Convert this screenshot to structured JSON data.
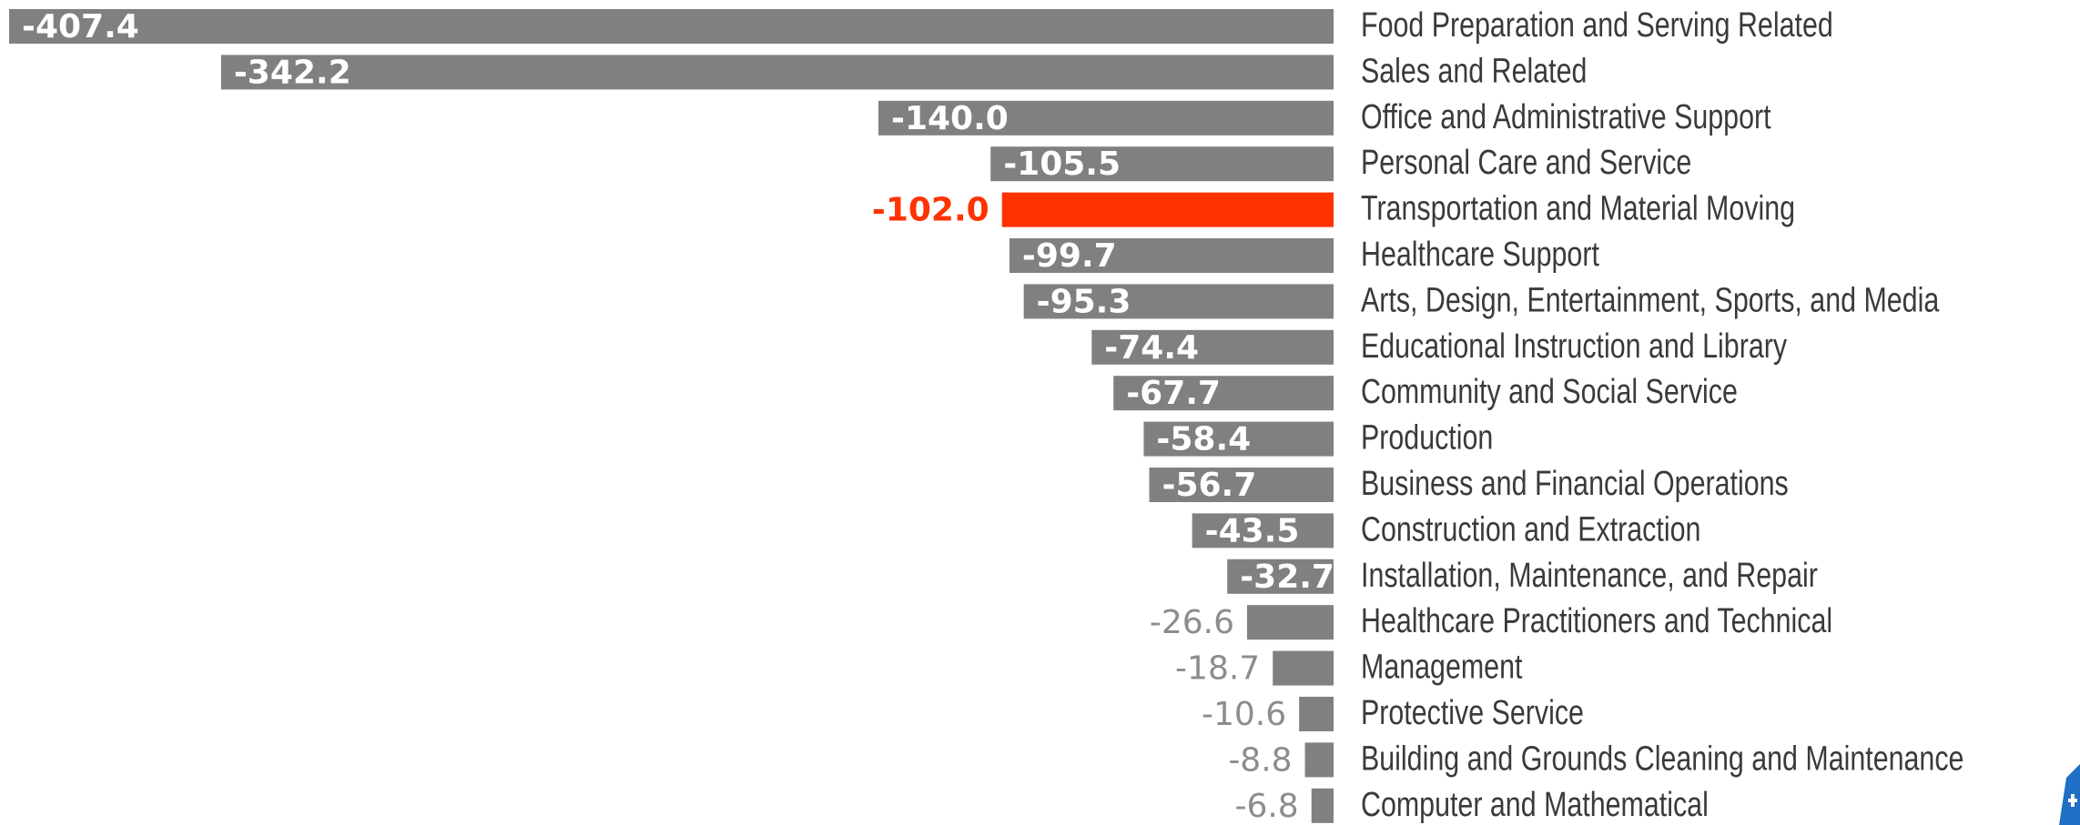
{
  "chart_data": {
    "type": "bar",
    "orientation": "horizontal",
    "categories": [
      "Food Preparation and Serving Related",
      "Sales and Related",
      "Office and Administrative Support",
      "Personal Care and Service",
      "Transportation and Material Moving",
      "Healthcare Support",
      "Arts, Design, Entertainment, Sports, and Media",
      "Educational Instruction and Library",
      "Community and Social Service",
      "Production",
      "Business and Financial Operations",
      "Construction and Extraction",
      "Installation, Maintenance, and Repair",
      "Healthcare Practitioners and Technical",
      "Management",
      "Protective Service",
      "Building and Grounds Cleaning and Maintenance",
      "Computer and Mathematical"
    ],
    "values": [
      -407.4,
      -342.2,
      -140.0,
      -105.5,
      -102.0,
      -99.7,
      -95.3,
      -74.4,
      -67.7,
      -58.4,
      -56.7,
      -43.5,
      -32.7,
      -26.6,
      -18.7,
      -10.6,
      -8.8,
      -6.8
    ],
    "value_labels": [
      "-407.4",
      "-342.2",
      "-140.0",
      "-105.5",
      "-102.0",
      "-99.7",
      "-95.3",
      "-74.4",
      "-67.7",
      "-58.4",
      "-56.7",
      "-43.5",
      "-32.7",
      "-26.6",
      "-18.7",
      "-10.6",
      "-8.8",
      "-6.8"
    ],
    "color": "#808080",
    "colors": [
      "#808080",
      "#808080",
      "#808080",
      "#808080",
      "#ff3300",
      "#808080",
      "#808080",
      "#808080",
      "#808080",
      "#808080",
      "#808080",
      "#808080",
      "#808080",
      "#808080",
      "#808080",
      "#808080",
      "#808080",
      "#808080"
    ]
  }
}
